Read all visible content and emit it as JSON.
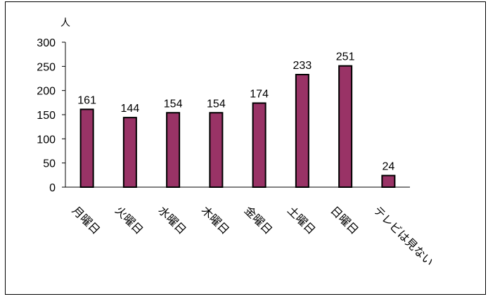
{
  "chart_data": {
    "type": "bar",
    "y_unit": "人",
    "ylim": [
      0,
      300
    ],
    "y_ticks": [
      "0",
      "50",
      "100",
      "150",
      "200",
      "250",
      "300"
    ],
    "categories": [
      "月曜日",
      "火曜日",
      "水曜日",
      "木曜日",
      "金曜日",
      "土曜日",
      "日曜日",
      "テレビは見ない"
    ],
    "values": [
      161,
      144,
      154,
      154,
      174,
      233,
      251,
      24
    ],
    "data_labels": [
      "161",
      "144",
      "154",
      "154",
      "174",
      "233",
      "251",
      "24"
    ],
    "bar_color": "#993366",
    "grid": false,
    "legend": "none"
  }
}
